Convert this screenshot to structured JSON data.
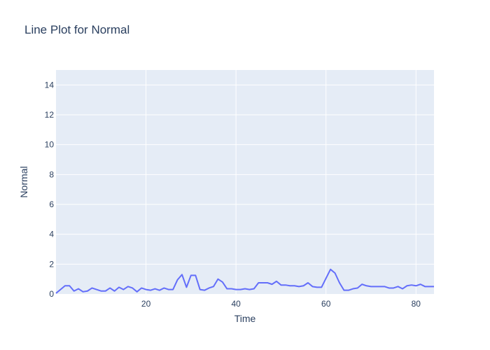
{
  "colors": {
    "plot_background": "#e5ecf6",
    "gridline": "#ffffff",
    "line": "#636efa",
    "text": "#2a3f5f"
  },
  "chart_data": {
    "type": "line",
    "title": "Line Plot for Normal",
    "xlabel": "Time",
    "ylabel": "Normal",
    "xlim": [
      0,
      84
    ],
    "ylim": [
      0,
      15
    ],
    "xticks": [
      20,
      40,
      60,
      80
    ],
    "yticks": [
      0,
      2,
      4,
      6,
      8,
      10,
      12,
      14
    ],
    "grid": true,
    "legend": "none",
    "series": [
      {
        "x": [
          0,
          1,
          2,
          3,
          4,
          5,
          6,
          7,
          8,
          9,
          10,
          11,
          12,
          13,
          14,
          15,
          16,
          17,
          18,
          19,
          20,
          21,
          22,
          23,
          24,
          25,
          26,
          27,
          28,
          29,
          30,
          31,
          32,
          33,
          34,
          35,
          36,
          37,
          38,
          39,
          40,
          41,
          42,
          43,
          44,
          45,
          46,
          47,
          48,
          49,
          50,
          51,
          52,
          53,
          54,
          55,
          56,
          57,
          58,
          59,
          60,
          61,
          62,
          63,
          64,
          65,
          66,
          67,
          68,
          69,
          70,
          71,
          72,
          73,
          74,
          75,
          76,
          77,
          78,
          79,
          80,
          81,
          82,
          83,
          84
        ],
        "y": [
          0.05,
          0.3,
          0.55,
          0.55,
          0.2,
          0.35,
          0.15,
          0.2,
          0.4,
          0.3,
          0.2,
          0.2,
          0.4,
          0.2,
          0.45,
          0.3,
          0.5,
          0.4,
          0.15,
          0.4,
          0.3,
          0.25,
          0.35,
          0.25,
          0.4,
          0.3,
          0.3,
          0.95,
          1.3,
          0.45,
          1.25,
          1.25,
          0.3,
          0.25,
          0.4,
          0.5,
          1.0,
          0.8,
          0.35,
          0.35,
          0.3,
          0.3,
          0.35,
          0.3,
          0.35,
          0.75,
          0.75,
          0.75,
          0.65,
          0.85,
          0.6,
          0.6,
          0.55,
          0.55,
          0.5,
          0.55,
          0.75,
          0.5,
          0.45,
          0.45,
          1.05,
          1.65,
          1.4,
          0.75,
          0.25,
          0.25,
          0.35,
          0.4,
          0.65,
          0.55,
          0.5,
          0.5,
          0.5,
          0.5,
          0.4,
          0.4,
          0.5,
          0.35,
          0.55,
          0.6,
          0.55,
          0.65,
          0.5,
          0.5,
          0.5
        ]
      }
    ]
  }
}
